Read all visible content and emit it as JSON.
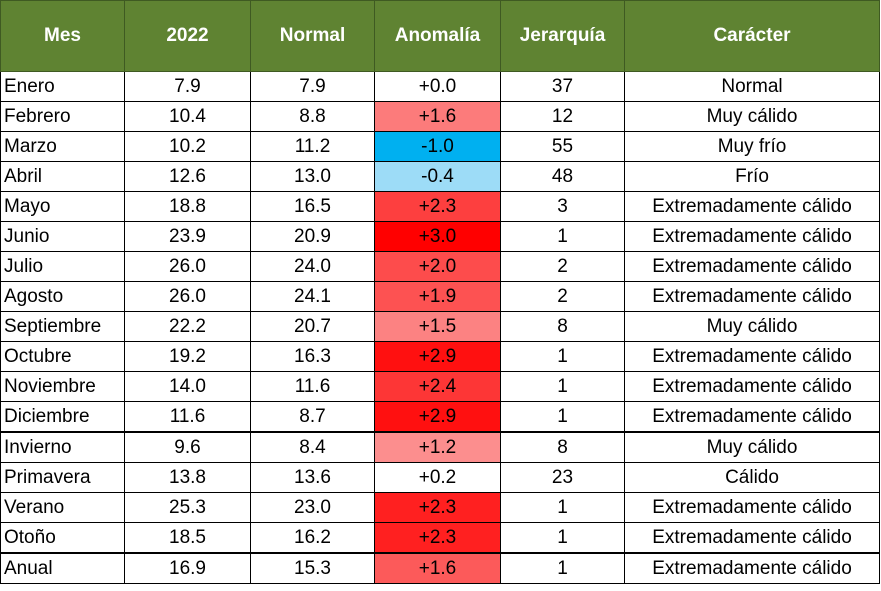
{
  "headers": [
    "Mes",
    "2022",
    "Normal",
    "Anomalía",
    "Jerarquía",
    "Carácter"
  ],
  "rows": [
    {
      "mes": "Enero",
      "y2022": "7.9",
      "normal": "7.9",
      "anomalia": "+0.0",
      "jerarquia": "37",
      "caracter": "Normal",
      "color": "#ffffff"
    },
    {
      "mes": "Febrero",
      "y2022": "10.4",
      "normal": "8.8",
      "anomalia": "+1.6",
      "jerarquia": "12",
      "caracter": "Muy cálido",
      "color": "#fc7b7b"
    },
    {
      "mes": "Marzo",
      "y2022": "10.2",
      "normal": "11.2",
      "anomalia": "-1.0",
      "jerarquia": "55",
      "caracter": "Muy frío",
      "color": "#00b0f0"
    },
    {
      "mes": "Abril",
      "y2022": "12.6",
      "normal": "13.0",
      "anomalia": "-0.4",
      "jerarquia": "48",
      "caracter": "Frío",
      "color": "#9ddcf7"
    },
    {
      "mes": "Mayo",
      "y2022": "18.8",
      "normal": "16.5",
      "anomalia": "+2.3",
      "jerarquia": "3",
      "caracter": "Extremadamente cálido",
      "color": "#fd3f3f"
    },
    {
      "mes": "Junio",
      "y2022": "23.9",
      "normal": "20.9",
      "anomalia": "+3.0",
      "jerarquia": "1",
      "caracter": "Extremadamente cálido",
      "color": "#ff0000"
    },
    {
      "mes": "Julio",
      "y2022": "26.0",
      "normal": "24.0",
      "anomalia": "+2.0",
      "jerarquia": "2",
      "caracter": "Extremadamente cálido",
      "color": "#fd4c4c"
    },
    {
      "mes": "Agosto",
      "y2022": "26.0",
      "normal": "24.1",
      "anomalia": "+1.9",
      "jerarquia": "2",
      "caracter": "Extremadamente cálido",
      "color": "#fd5252"
    },
    {
      "mes": "Septiembre",
      "y2022": "22.2",
      "normal": "20.7",
      "anomalia": "+1.5",
      "jerarquia": "8",
      "caracter": "Muy cálido",
      "color": "#fc8282"
    },
    {
      "mes": "Octubre",
      "y2022": "19.2",
      "normal": "16.3",
      "anomalia": "+2.9",
      "jerarquia": "1",
      "caracter": "Extremadamente cálido",
      "color": "#ff1010"
    },
    {
      "mes": "Noviembre",
      "y2022": "14.0",
      "normal": "11.6",
      "anomalia": "+2.4",
      "jerarquia": "1",
      "caracter": "Extremadamente cálido",
      "color": "#fd3636"
    },
    {
      "mes": "Diciembre",
      "y2022": "11.6",
      "normal": "8.7",
      "anomalia": "+2.9",
      "jerarquia": "1",
      "caracter": "Extremadamente cálido",
      "color": "#ff1010"
    },
    {
      "mes": "Invierno",
      "y2022": "9.6",
      "normal": "8.4",
      "anomalia": "+1.2",
      "jerarquia": "8",
      "caracter": "Muy cálido",
      "color": "#fc8e8e"
    },
    {
      "mes": "Primavera",
      "y2022": "13.8",
      "normal": "13.6",
      "anomalia": "+0.2",
      "jerarquia": "23",
      "caracter": "Cálido",
      "color": "#ffffff"
    },
    {
      "mes": "Verano",
      "y2022": "25.3",
      "normal": "23.0",
      "anomalia": "+2.3",
      "jerarquia": "1",
      "caracter": "Extremadamente cálido",
      "color": "#ff2020"
    },
    {
      "mes": "Otoño",
      "y2022": "18.5",
      "normal": "16.2",
      "anomalia": "+2.3",
      "jerarquia": "1",
      "caracter": "Extremadamente cálido",
      "color": "#ff2020"
    },
    {
      "mes": "Anual",
      "y2022": "16.9",
      "normal": "15.3",
      "anomalia": "+1.6",
      "jerarquia": "1",
      "caracter": "Extremadamente cálido",
      "color": "#fc5a5a"
    }
  ],
  "section_breaks": [
    12,
    16
  ]
}
